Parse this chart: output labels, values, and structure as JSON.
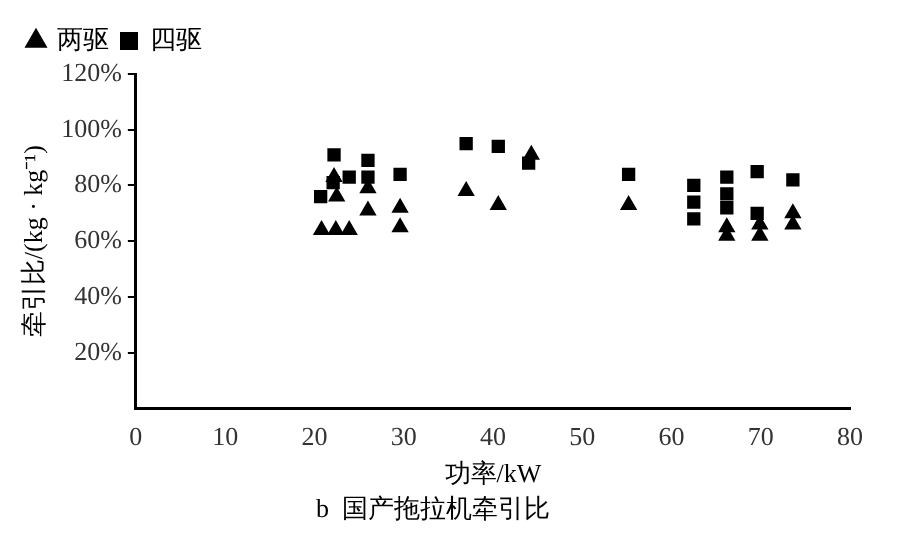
{
  "chart_data": {
    "type": "scatter",
    "title": "b  国产拖拉机牵引比",
    "xlabel": "功率/kW",
    "ylabel": "牵引比/(kg · kg⁻¹)",
    "xlim": [
      0,
      80
    ],
    "xticks": [
      0,
      10,
      20,
      30,
      40,
      50,
      60,
      70,
      80
    ],
    "ylim": [
      0,
      120
    ],
    "yticks": [
      {
        "value": 20,
        "label": "20%"
      },
      {
        "value": 40,
        "label": "40%"
      },
      {
        "value": 60,
        "label": "60%"
      },
      {
        "value": 80,
        "label": "80%"
      },
      {
        "value": 100,
        "label": "100%"
      },
      {
        "value": 120,
        "label": "120%"
      }
    ],
    "grid": false,
    "legend": "top left",
    "series": [
      {
        "name": "两驱",
        "color": "#000000",
        "marker": "triangle",
        "x": [
          22.2,
          22.5,
          20.8,
          22.4,
          23.9,
          26,
          26,
          29.6,
          29.6,
          37,
          40.6,
          44.3,
          55.2,
          66.2,
          66.2,
          69.9,
          69.9,
          73.6,
          73.6
        ],
        "values": [
          83,
          76,
          64,
          64,
          64,
          79,
          71,
          72,
          65,
          78,
          73,
          91,
          73,
          65,
          62,
          66,
          62,
          70,
          66
        ]
      },
      {
        "name": "四驱",
        "color": "#000000",
        "marker": "square",
        "x": [
          22.2,
          26,
          26,
          23.9,
          29.6,
          20.7,
          22.1,
          37,
          40.6,
          44,
          55.2,
          62.5,
          62.5,
          62.5,
          66.2,
          66.2,
          66.2,
          69.6,
          69.6,
          73.6
        ],
        "values": [
          91,
          89,
          83,
          83,
          84,
          76,
          81,
          95,
          94,
          88,
          84,
          80,
          74,
          68,
          83,
          77,
          72,
          85,
          70,
          82
        ]
      }
    ]
  }
}
